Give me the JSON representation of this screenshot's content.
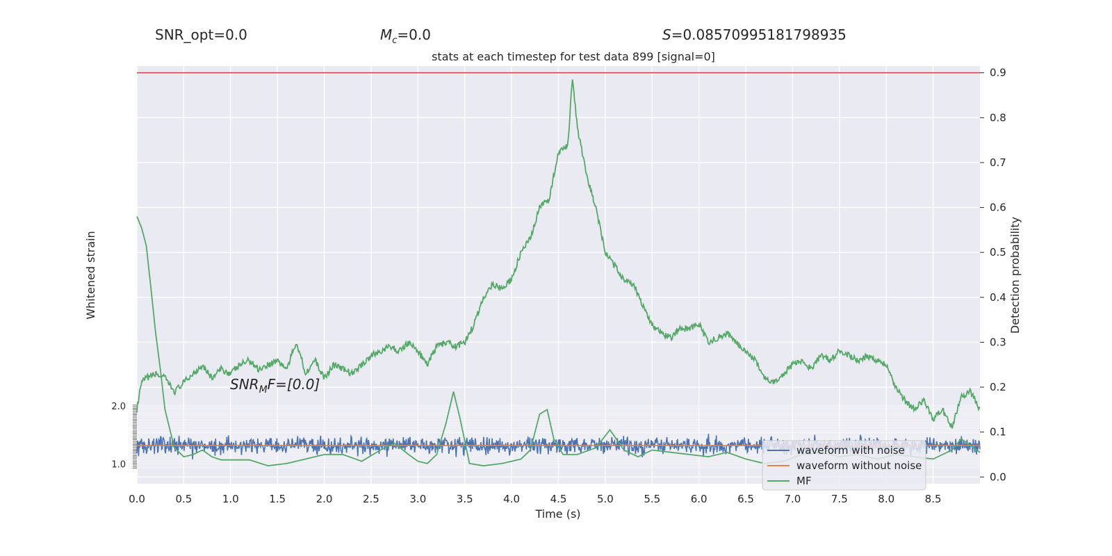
{
  "header": {
    "snr_opt": "SNR_opt=0.0",
    "mc_symbol": "M",
    "mc_sub": "c",
    "mc_value": "=0.0",
    "s_symbol": "S",
    "s_value": "=0.08570995181798935"
  },
  "chart_data": {
    "type": "line",
    "title": "stats at each timestep for test data 899 [signal=0]",
    "xlabel": "Time (s)",
    "ylabel_left": "Whitened strain",
    "ylabel_right": "Detection probability",
    "annotation": {
      "base": "SNR",
      "sub": "M",
      "rest": "F=[0.0]",
      "x": 1.0,
      "y": 0.2
    },
    "xlim": [
      0.0,
      9.0
    ],
    "ylim_right": [
      -0.015,
      0.915
    ],
    "xticks": [
      "0.0",
      "0.5",
      "1.0",
      "1.5",
      "2.0",
      "2.5",
      "3.0",
      "3.5",
      "4.0",
      "4.5",
      "5.0",
      "5.5",
      "6.0",
      "6.5",
      "7.0",
      "7.5",
      "8.0",
      "8.5"
    ],
    "yticks_right": [
      "0.0",
      "0.1",
      "0.2",
      "0.3",
      "0.4",
      "0.5",
      "0.6",
      "0.7",
      "0.8",
      "0.9"
    ],
    "strain_ticks_top": "2.0",
    "strain_ticks_bottom": "1.0",
    "threshold": {
      "value": 0.9,
      "color": "#c44e52"
    },
    "legend": {
      "position": "lower-right",
      "items": [
        {
          "label": "waveform with noise",
          "color": "#4c72b0"
        },
        {
          "label": "waveform without noise",
          "color": "#dd8452"
        },
        {
          "label": "MF",
          "color": "#55a868"
        }
      ]
    },
    "series": [
      {
        "name": "Detection probability",
        "color": "#55a868",
        "x": [
          0.0,
          0.05,
          0.1,
          0.2,
          0.3,
          0.4,
          0.5,
          0.6,
          0.7,
          0.8,
          0.9,
          1.0,
          1.1,
          1.2,
          1.3,
          1.4,
          1.5,
          1.6,
          1.7,
          1.75,
          1.8,
          1.9,
          2.0,
          2.1,
          2.2,
          2.3,
          2.4,
          2.5,
          2.6,
          2.7,
          2.8,
          2.9,
          3.0,
          3.1,
          3.2,
          3.3,
          3.4,
          3.5,
          3.6,
          3.7,
          3.8,
          3.9,
          4.0,
          4.1,
          4.2,
          4.3,
          4.4,
          4.5,
          4.6,
          4.65,
          4.7,
          4.8,
          4.9,
          5.0,
          5.1,
          5.2,
          5.3,
          5.4,
          5.5,
          5.6,
          5.7,
          5.8,
          5.9,
          6.0,
          6.1,
          6.2,
          6.3,
          6.4,
          6.5,
          6.6,
          6.7,
          6.8,
          6.9,
          7.0,
          7.1,
          7.2,
          7.3,
          7.4,
          7.5,
          7.6,
          7.7,
          7.8,
          7.9,
          8.0,
          8.1,
          8.2,
          8.3,
          8.4,
          8.5,
          8.6,
          8.7,
          8.8,
          8.9,
          9.0
        ],
        "y": [
          0.15,
          0.21,
          0.22,
          0.23,
          0.22,
          0.19,
          0.21,
          0.23,
          0.25,
          0.22,
          0.24,
          0.23,
          0.25,
          0.26,
          0.24,
          0.25,
          0.26,
          0.24,
          0.3,
          0.27,
          0.23,
          0.26,
          0.22,
          0.25,
          0.24,
          0.23,
          0.25,
          0.27,
          0.28,
          0.29,
          0.28,
          0.3,
          0.28,
          0.25,
          0.29,
          0.3,
          0.29,
          0.3,
          0.34,
          0.4,
          0.43,
          0.42,
          0.44,
          0.5,
          0.53,
          0.6,
          0.62,
          0.72,
          0.74,
          0.89,
          0.78,
          0.67,
          0.6,
          0.5,
          0.47,
          0.44,
          0.43,
          0.38,
          0.34,
          0.32,
          0.31,
          0.33,
          0.33,
          0.34,
          0.3,
          0.31,
          0.32,
          0.3,
          0.28,
          0.26,
          0.22,
          0.21,
          0.23,
          0.25,
          0.26,
          0.24,
          0.27,
          0.26,
          0.28,
          0.27,
          0.26,
          0.27,
          0.26,
          0.25,
          0.2,
          0.17,
          0.15,
          0.17,
          0.13,
          0.15,
          0.11,
          0.18,
          0.19,
          0.15
        ]
      },
      {
        "name": "MF",
        "color": "#55a868",
        "x": [
          0.0,
          0.05,
          0.1,
          0.15,
          0.2,
          0.25,
          0.3,
          0.4,
          0.5,
          0.6,
          0.7,
          0.8,
          0.9,
          1.0,
          1.2,
          1.4,
          1.6,
          1.8,
          2.0,
          2.2,
          2.4,
          2.6,
          2.75,
          2.9,
          3.0,
          3.1,
          3.2,
          3.3,
          3.38,
          3.45,
          3.55,
          3.7,
          3.9,
          4.1,
          4.2,
          4.3,
          4.38,
          4.45,
          4.55,
          4.7,
          4.9,
          5.05,
          5.2,
          5.35,
          5.5,
          5.7,
          5.9,
          6.1,
          6.3,
          6.5,
          6.7,
          6.9,
          7.1,
          7.3,
          7.5,
          7.7,
          7.9,
          8.1,
          8.3,
          8.5,
          8.7,
          8.8,
          8.9,
          9.0
        ],
        "y": [
          0.58,
          0.555,
          0.515,
          0.42,
          0.32,
          0.24,
          0.15,
          0.065,
          0.045,
          0.05,
          0.06,
          0.045,
          0.038,
          0.038,
          0.038,
          0.025,
          0.03,
          0.04,
          0.05,
          0.05,
          0.035,
          0.06,
          0.075,
          0.05,
          0.035,
          0.03,
          0.05,
          0.12,
          0.19,
          0.13,
          0.03,
          0.025,
          0.03,
          0.04,
          0.06,
          0.14,
          0.15,
          0.085,
          0.05,
          0.05,
          0.065,
          0.105,
          0.06,
          0.045,
          0.06,
          0.055,
          0.05,
          0.045,
          0.055,
          0.04,
          0.03,
          0.035,
          0.05,
          0.055,
          0.045,
          0.05,
          0.04,
          0.05,
          0.045,
          0.04,
          0.06,
          0.085,
          0.07,
          0.055
        ]
      },
      {
        "name": "waveform with noise",
        "color": "#4c72b0",
        "band_center": 0.07,
        "band_half_width": 0.018
      },
      {
        "name": "waveform without noise",
        "color": "#dd8452",
        "value": 0.07
      }
    ]
  }
}
